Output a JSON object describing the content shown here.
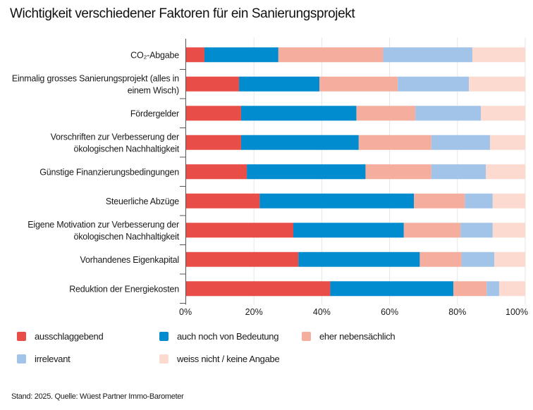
{
  "chart_data": {
    "type": "bar",
    "orientation": "horizontal",
    "stacked": true,
    "title": "Wichtigkeit verschiedener Faktoren für ein Sanierungsprojekt",
    "xlabel": "",
    "ylabel": "",
    "xlim": [
      0,
      100
    ],
    "x_ticks": [
      "0%",
      "20%",
      "40%",
      "60%",
      "80%",
      "100%"
    ],
    "x_tick_values": [
      0,
      20,
      40,
      60,
      80,
      100
    ],
    "grid": true,
    "legend_position": "bottom",
    "categories": [
      [
        "CO₂-Abgabe"
      ],
      [
        "Einmalig grosses Sanierungsprojekt (alles in",
        "einem Wisch)"
      ],
      [
        "Fördergelder"
      ],
      [
        "Vorschriften zur Verbesserung der",
        "ökologischen Nachhaltigkeit"
      ],
      [
        "Günstige Finanzierungsbedingungen"
      ],
      [
        "Steuerliche Abzüge"
      ],
      [
        "Eigene Motivation zur Verbesserung der",
        "ökologischen Nachhaltigkeit"
      ],
      [
        "Vorhandenes Eigenkapital"
      ],
      [
        "Reduktion der Energiekosten"
      ]
    ],
    "series": [
      {
        "name": "ausschlaggebend",
        "color": "#e84e47",
        "values": [
          5.4,
          15.6,
          16.2,
          16.2,
          17.9,
          21.7,
          31.6,
          33.1,
          42.5
        ]
      },
      {
        "name": "auch noch von Bedeutung",
        "color": "#008ccf",
        "values": [
          21.8,
          23.7,
          34.0,
          34.7,
          35.0,
          45.5,
          32.6,
          35.8,
          36.3
        ]
      },
      {
        "name": "eher nebensächlich",
        "color": "#f5ae9e",
        "values": [
          30.9,
          23.1,
          17.4,
          21.4,
          19.4,
          15.0,
          16.7,
          12.3,
          9.8
        ]
      },
      {
        "name": "irrelevant",
        "color": "#a3c4e9",
        "values": [
          26.3,
          21.0,
          19.3,
          17.3,
          16.1,
          8.2,
          9.5,
          9.7,
          3.7
        ]
      },
      {
        "name": "weiss nicht / keine Angabe",
        "color": "#fcdad0",
        "values": [
          15.6,
          16.6,
          13.1,
          10.4,
          11.6,
          9.6,
          9.6,
          9.1,
          7.7
        ]
      }
    ]
  },
  "source": "Stand: 2025. Quelle: Wüest Partner Immo-Barometer"
}
